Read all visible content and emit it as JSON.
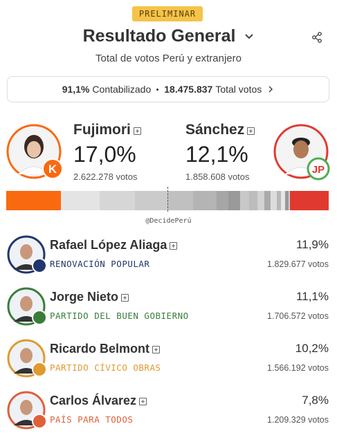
{
  "badge": "PRELIMINAR",
  "header": {
    "title": "Resultado General",
    "subtitle": "Total de votos Perú y extranjero"
  },
  "summary": {
    "percent": "91,1%",
    "percent_label": "Contabilizado",
    "votes": "18.475.837",
    "votes_label": "Total votos"
  },
  "leaders": [
    {
      "name": "Fujimori",
      "percent": "17,0%",
      "votes": "2.622.278 votos"
    },
    {
      "name": "Sánchez",
      "percent": "12,1%",
      "votes": "1.858.608 votos"
    }
  ],
  "vote_bar": {
    "values": [
      17.0,
      11.9,
      11.1,
      10.2,
      7.8,
      7.3,
      3.6,
      3.6,
      2.8,
      2.5,
      2.2,
      2.0,
      1.8,
      1.5,
      1.2,
      1.0,
      0.4,
      12.1
    ],
    "colors": [
      "#f96a10",
      "#e4e4e4",
      "#d6d6d6",
      "#cbcbcb",
      "#c0c0c0",
      "#b4b4b4",
      "#a6a6a6",
      "#9a9a9a",
      "#c8c8c8",
      "#bdbdbd",
      "#d2d2d2",
      "#aaaaaa",
      "#dcdcdc",
      "#b8b8b8",
      "#e6e6e6",
      "#999999",
      "#cfcfcf",
      "#e03a30"
    ]
  },
  "source": "@DecidePerú",
  "candidates": [
    {
      "name": "Rafael López Aliaga",
      "party": "RENOVACIÓN POPULAR",
      "percent": "11,9%",
      "votes": "1.829.677 votos",
      "color": "#22356e"
    },
    {
      "name": "Jorge Nieto",
      "party": "PARTIDO DEL BUEN GOBIERNO",
      "percent": "11,1%",
      "votes": "1.706.572 votos",
      "color": "#3a7d3a"
    },
    {
      "name": "Ricardo Belmont",
      "party": "PARTIDO CÍVICO OBRAS",
      "percent": "10,2%",
      "votes": "1.566.192 votos",
      "color": "#e09a2e"
    },
    {
      "name": "Carlos Álvarez",
      "party": "PAÍS PARA TODOS",
      "percent": "7,8%",
      "votes": "1.209.329 votos",
      "color": "#e0603a"
    }
  ]
}
